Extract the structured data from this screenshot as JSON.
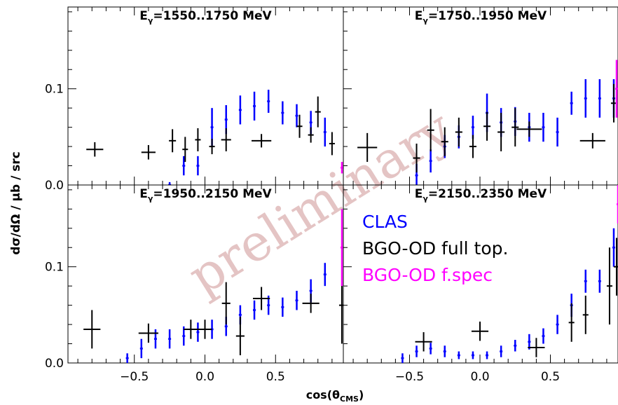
{
  "chart_data": {
    "type": "scatter",
    "y_axis_label": "dσ/dΩ / μb / src",
    "x_axis_label": "cos(θ",
    "x_axis_label_sub": "CMS",
    "watermark": "preliminary",
    "xlim": [
      -0.97,
      0.98
    ],
    "legend": {
      "placement": "lower-right panel, top",
      "entries": [
        {
          "label": "CLAS",
          "color": "#0000ff"
        },
        {
          "label": "BGO-OD full top.",
          "color": "#000000"
        },
        {
          "label": "BGO-OD f.spec",
          "color": "#ff00ff"
        }
      ]
    },
    "x_ticks": [
      {
        "v": -0.5,
        "label": "−0.5"
      },
      {
        "v": 0.0,
        "label": "0.0"
      },
      {
        "v": 0.5,
        "label": "0.5"
      }
    ],
    "panels": [
      {
        "title_main": "E",
        "title_sub": "γ",
        "title_rest": "=1550..1750 MeV",
        "ylim": [
          0.0,
          0.185
        ],
        "y_ticks": [
          {
            "v": 0.0,
            "label": "0.0"
          },
          {
            "v": 0.1,
            "label": "0.1"
          }
        ],
        "series": [
          {
            "name": "CLAS",
            "color": "#0000ff",
            "points": [
              [
                -0.25,
                0.0,
                0.003
              ],
              [
                -0.15,
                0.02,
                0.01
              ],
              [
                -0.05,
                0.02,
                0.01
              ],
              [
                0.05,
                0.06,
                0.02
              ],
              [
                0.15,
                0.068,
                0.015
              ],
              [
                0.25,
                0.078,
                0.015
              ],
              [
                0.35,
                0.082,
                0.015
              ],
              [
                0.45,
                0.087,
                0.012
              ],
              [
                0.55,
                0.075,
                0.012
              ],
              [
                0.65,
                0.072,
                0.012
              ],
              [
                0.75,
                0.065,
                0.012
              ],
              [
                0.85,
                0.055,
                0.015
              ]
            ]
          },
          {
            "name": "BGO-OD full top.",
            "color": "#000000",
            "points": [
              [
                -0.78,
                0.037,
                0.0075,
                0.06
              ],
              [
                -0.4,
                0.034,
                0.0075,
                0.05
              ],
              [
                -0.23,
                0.046,
                0.012,
                0.025
              ],
              [
                -0.14,
                0.037,
                0.013,
                0.02
              ],
              [
                -0.05,
                0.047,
                0.012,
                0.02
              ],
              [
                0.05,
                0.04,
                0.008,
                0.02
              ],
              [
                0.15,
                0.047,
                0.012,
                0.035
              ],
              [
                0.4,
                0.046,
                0.007,
                0.07
              ],
              [
                0.67,
                0.061,
                0.012,
                0.02
              ],
              [
                0.75,
                0.052,
                0.008,
                0.02
              ],
              [
                0.8,
                0.076,
                0.016,
                0.02
              ],
              [
                0.9,
                0.043,
                0.012,
                0.02
              ]
            ]
          },
          {
            "name": "BGO-OD f.spec",
            "color": "#ff00ff",
            "points": [
              [
                0.97,
                0.018,
                0.006
              ]
            ]
          }
        ]
      },
      {
        "title_main": "E",
        "title_sub": "γ",
        "title_rest": "=1750..1950 MeV",
        "ylim": [
          0.0,
          0.185
        ],
        "y_ticks": [],
        "series": [
          {
            "name": "CLAS",
            "color": "#0000ff",
            "points": [
              [
                -0.45,
                0.01,
                0.012
              ],
              [
                -0.35,
                0.025,
                0.012
              ],
              [
                -0.25,
                0.04,
                0.012
              ],
              [
                -0.15,
                0.05,
                0.012
              ],
              [
                -0.05,
                0.06,
                0.012
              ],
              [
                0.05,
                0.075,
                0.02
              ],
              [
                0.15,
                0.065,
                0.015
              ],
              [
                0.25,
                0.066,
                0.015
              ],
              [
                0.35,
                0.06,
                0.015
              ],
              [
                0.45,
                0.06,
                0.015
              ],
              [
                0.55,
                0.055,
                0.015
              ],
              [
                0.65,
                0.085,
                0.012
              ],
              [
                0.75,
                0.09,
                0.02
              ],
              [
                0.85,
                0.09,
                0.02
              ],
              [
                0.95,
                0.09,
                0.02
              ]
            ]
          },
          {
            "name": "BGO-OD full top.",
            "color": "#000000",
            "points": [
              [
                -0.8,
                0.039,
                0.015,
                0.07
              ],
              [
                -0.45,
                0.028,
                0.015,
                0.025
              ],
              [
                -0.35,
                0.057,
                0.022,
                0.025
              ],
              [
                -0.25,
                0.045,
                0.015,
                0.025
              ],
              [
                -0.15,
                0.055,
                0.015,
                0.025
              ],
              [
                -0.05,
                0.04,
                0.012,
                0.025
              ],
              [
                0.05,
                0.061,
                0.015,
                0.025
              ],
              [
                0.15,
                0.055,
                0.02,
                0.025
              ],
              [
                0.25,
                0.06,
                0.02,
                0.025
              ],
              [
                0.35,
                0.058,
                0.008,
                0.09
              ],
              [
                0.8,
                0.046,
                0.008,
                0.09
              ],
              [
                0.95,
                0.085,
                0.02,
                0.02
              ]
            ]
          },
          {
            "name": "BGO-OD f.spec",
            "color": "#ff00ff",
            "points": [
              [
                0.97,
                0.1,
                0.03
              ]
            ]
          }
        ]
      },
      {
        "title_main": "E",
        "title_sub": "γ",
        "title_rest": "=1950..2150 MeV",
        "ylim": [
          0.0,
          0.185
        ],
        "y_ticks": [
          {
            "v": 0.0,
            "label": "0.0"
          },
          {
            "v": 0.1,
            "label": "0.1"
          }
        ],
        "series": [
          {
            "name": "CLAS",
            "color": "#0000ff",
            "points": [
              [
                -0.55,
                0.005,
                0.005
              ],
              [
                -0.45,
                0.015,
                0.01
              ],
              [
                -0.35,
                0.025,
                0.01
              ],
              [
                -0.25,
                0.025,
                0.01
              ],
              [
                -0.15,
                0.028,
                0.01
              ],
              [
                -0.05,
                0.032,
                0.01
              ],
              [
                0.05,
                0.035,
                0.01
              ],
              [
                0.15,
                0.038,
                0.01
              ],
              [
                0.25,
                0.05,
                0.01
              ],
              [
                0.35,
                0.055,
                0.01
              ],
              [
                0.45,
                0.06,
                0.01
              ],
              [
                0.55,
                0.058,
                0.01
              ],
              [
                0.65,
                0.065,
                0.01
              ],
              [
                0.75,
                0.075,
                0.012
              ],
              [
                0.85,
                0.092,
                0.012
              ]
            ]
          },
          {
            "name": "BGO-OD full top.",
            "color": "#000000",
            "points": [
              [
                -0.8,
                0.035,
                0.02,
                0.06
              ],
              [
                -0.4,
                0.031,
                0.01,
                0.07
              ],
              [
                -0.1,
                0.035,
                0.01,
                0.05
              ],
              [
                0.0,
                0.035,
                0.01,
                0.05
              ],
              [
                0.15,
                0.062,
                0.022,
                0.03
              ],
              [
                0.25,
                0.028,
                0.02,
                0.03
              ],
              [
                0.4,
                0.067,
                0.012,
                0.06
              ],
              [
                0.75,
                0.062,
                0.01,
                0.06
              ],
              [
                0.97,
                0.06,
                0.04,
                0.02
              ]
            ]
          },
          {
            "name": "BGO-OD f.spec",
            "color": "#ff00ff",
            "points": [
              [
                0.97,
                0.12,
                0.04
              ]
            ]
          }
        ]
      },
      {
        "title_main": "E",
        "title_sub": "γ",
        "title_rest": "=2150..2350 MeV",
        "ylim": [
          0.0,
          0.185
        ],
        "y_ticks": [],
        "series": [
          {
            "name": "CLAS",
            "color": "#0000ff",
            "points": [
              [
                -0.55,
                0.005,
                0.005
              ],
              [
                -0.45,
                0.012,
                0.006
              ],
              [
                -0.35,
                0.015,
                0.006
              ],
              [
                -0.25,
                0.012,
                0.006
              ],
              [
                -0.15,
                0.008,
                0.004
              ],
              [
                -0.05,
                0.008,
                0.004
              ],
              [
                0.05,
                0.008,
                0.004
              ],
              [
                0.15,
                0.012,
                0.006
              ],
              [
                0.25,
                0.018,
                0.006
              ],
              [
                0.35,
                0.022,
                0.008
              ],
              [
                0.45,
                0.028,
                0.008
              ],
              [
                0.55,
                0.04,
                0.01
              ],
              [
                0.65,
                0.06,
                0.012
              ],
              [
                0.75,
                0.085,
                0.012
              ],
              [
                0.85,
                0.085,
                0.012
              ],
              [
                0.95,
                0.12,
                0.02
              ]
            ]
          },
          {
            "name": "BGO-OD full top.",
            "color": "#000000",
            "points": [
              [
                -0.4,
                0.022,
                0.01,
                0.06
              ],
              [
                0.0,
                0.033,
                0.01,
                0.06
              ],
              [
                0.4,
                0.016,
                0.01,
                0.06
              ],
              [
                0.65,
                0.042,
                0.02,
                0.02
              ],
              [
                0.75,
                0.05,
                0.02,
                0.02
              ],
              [
                0.92,
                0.08,
                0.04,
                0.02
              ],
              [
                0.97,
                0.1,
                0.03,
                0.02
              ]
            ]
          },
          {
            "name": "BGO-OD f.spec",
            "color": "#ff00ff",
            "points": [
              [
                0.98,
                0.165,
                0.02
              ]
            ]
          }
        ]
      }
    ]
  }
}
